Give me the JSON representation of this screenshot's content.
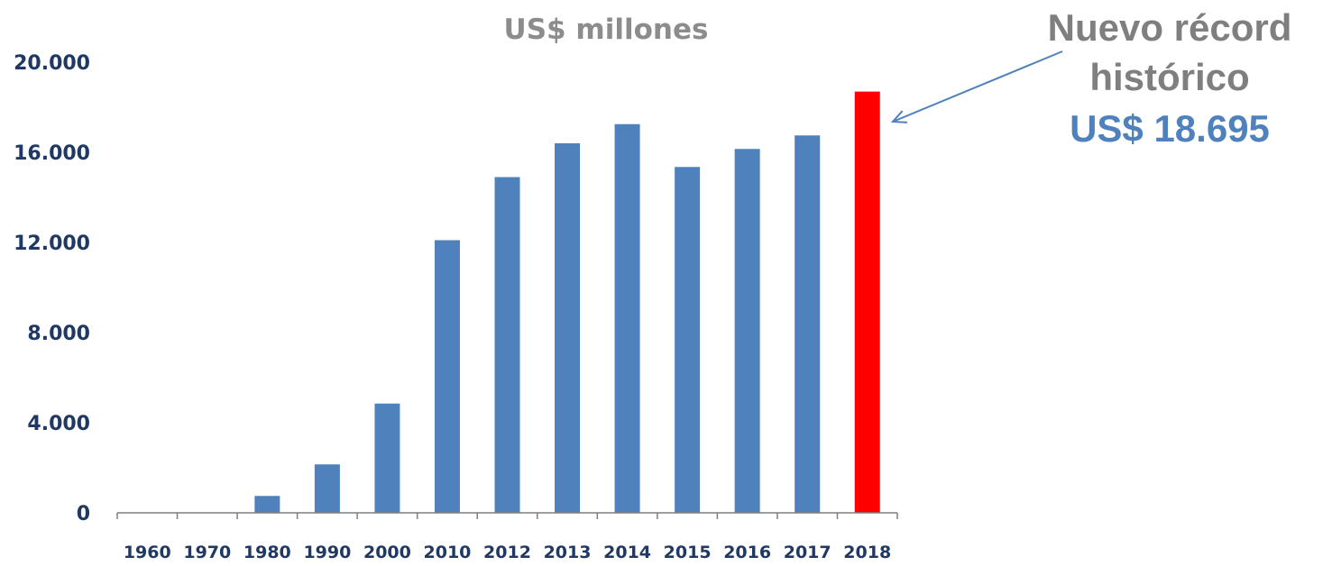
{
  "chart_data": {
    "type": "bar",
    "title": "US$ millones",
    "categories": [
      "1960",
      "1970",
      "1980",
      "1990",
      "2000",
      "2010",
      "2012",
      "2013",
      "2014",
      "2015",
      "2016",
      "2017",
      "2018"
    ],
    "values": [
      20,
      20,
      750,
      2150,
      4850,
      12100,
      14900,
      16400,
      17250,
      15350,
      16150,
      16750,
      18695
    ],
    "ylim": [
      0,
      20000
    ],
    "yticks": [
      "0",
      "4.000",
      "8.000",
      "12.000",
      "16.000",
      "20.000"
    ],
    "ytick_values": [
      0,
      4000,
      8000,
      12000,
      16000,
      20000
    ],
    "grid": false,
    "highlight_index": 12,
    "annotation": {
      "line1": "Nuevo récord",
      "line2": "histórico",
      "value": "US$ 18.695"
    }
  },
  "colors": {
    "bar": "#4f81bd",
    "highlight": "#ff0000",
    "title": "#8c8c8c",
    "annotation_text": "#7f7f7f",
    "annotation_value": "#4f81bd",
    "axis_text": "#1f3864",
    "axis_line": "#7f7f7f",
    "arrow": "#4f81bd"
  }
}
